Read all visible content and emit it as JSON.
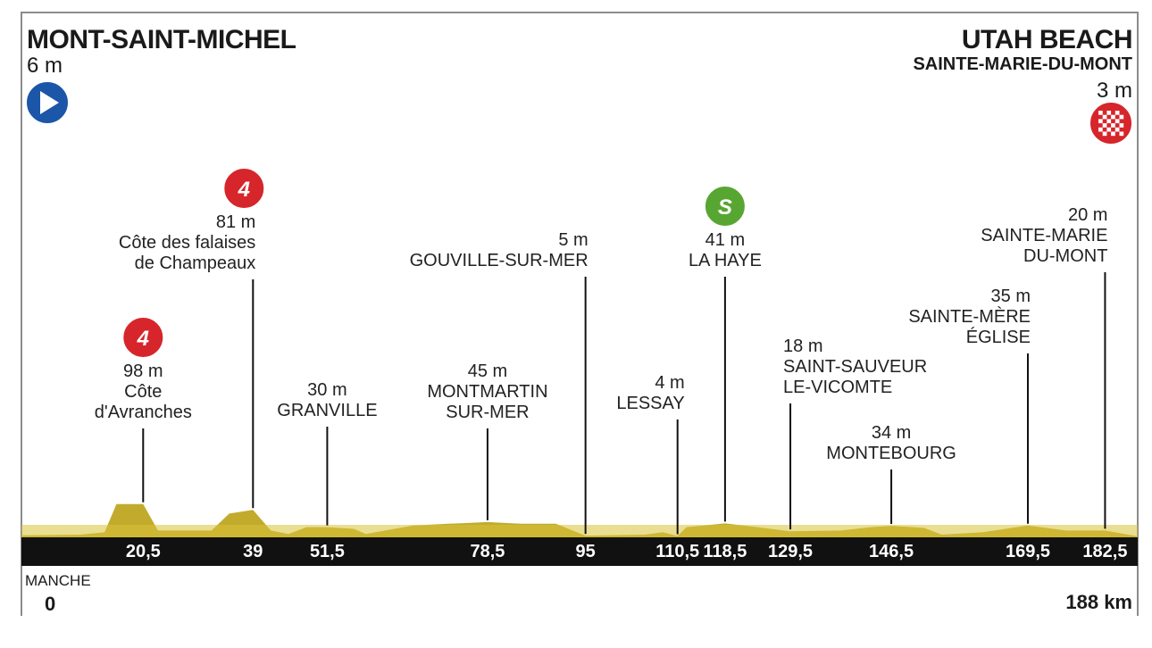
{
  "start": {
    "name": "MONT-SAINT-MICHEL",
    "altitude": "6 m"
  },
  "finish": {
    "name": "UTAH BEACH",
    "subname": "SAINTE-MARIE-DU-MONT",
    "altitude": "3 m"
  },
  "footer": {
    "region": "MANCHE",
    "start_km": "0",
    "end_km": "188 km"
  },
  "colors": {
    "profile": "#c2ab2c",
    "profile_top": "#d9c33a",
    "bar": "#111111",
    "frame": "#8c8c8c",
    "climb": "#d6252b",
    "sprint": "#58a632",
    "start": "#1b56a8"
  },
  "chart_data": {
    "type": "area",
    "title": "",
    "xlabel": "",
    "ylabel": "",
    "xlim": [
      0,
      188
    ],
    "ylim": [
      0,
      200
    ],
    "grid": false,
    "profile": [
      {
        "km": 0,
        "alt": 6
      },
      {
        "km": 10,
        "alt": 8
      },
      {
        "km": 14,
        "alt": 15
      },
      {
        "km": 16,
        "alt": 98
      },
      {
        "km": 20.5,
        "alt": 98
      },
      {
        "km": 23,
        "alt": 20
      },
      {
        "km": 32,
        "alt": 20
      },
      {
        "km": 35,
        "alt": 70
      },
      {
        "km": 39,
        "alt": 81
      },
      {
        "km": 42,
        "alt": 20
      },
      {
        "km": 45,
        "alt": 10
      },
      {
        "km": 48,
        "alt": 30
      },
      {
        "km": 51.5,
        "alt": 30
      },
      {
        "km": 56,
        "alt": 25
      },
      {
        "km": 58,
        "alt": 10
      },
      {
        "km": 66,
        "alt": 35
      },
      {
        "km": 72,
        "alt": 40
      },
      {
        "km": 78.5,
        "alt": 45
      },
      {
        "km": 84,
        "alt": 40
      },
      {
        "km": 90,
        "alt": 40
      },
      {
        "km": 95,
        "alt": 5
      },
      {
        "km": 105,
        "alt": 8
      },
      {
        "km": 108,
        "alt": 15
      },
      {
        "km": 110.5,
        "alt": 4
      },
      {
        "km": 112,
        "alt": 30
      },
      {
        "km": 118.5,
        "alt": 41
      },
      {
        "km": 124,
        "alt": 30
      },
      {
        "km": 129.5,
        "alt": 18
      },
      {
        "km": 138,
        "alt": 20
      },
      {
        "km": 143,
        "alt": 30
      },
      {
        "km": 146.5,
        "alt": 34
      },
      {
        "km": 152,
        "alt": 28
      },
      {
        "km": 155,
        "alt": 8
      },
      {
        "km": 162,
        "alt": 15
      },
      {
        "km": 169.5,
        "alt": 35
      },
      {
        "km": 176,
        "alt": 20
      },
      {
        "km": 182.5,
        "alt": 20
      },
      {
        "km": 188,
        "alt": 3
      }
    ],
    "points": [
      {
        "km": 20.5,
        "alt": "98 m",
        "name": "Côte\nd'Avranches",
        "category": "4"
      },
      {
        "km": 39,
        "alt": "81 m",
        "name": "Côte des falaises\nde Champeaux",
        "category": "4"
      },
      {
        "km": 51.5,
        "alt": "30 m",
        "name": "GRANVILLE",
        "category": ""
      },
      {
        "km": 78.5,
        "alt": "45 m",
        "name": "MONTMARTIN\nSUR-MER",
        "category": ""
      },
      {
        "km": 95,
        "alt": "5 m",
        "name": "GOUVILLE-SUR-MER",
        "category": ""
      },
      {
        "km": 110.5,
        "alt": "4 m",
        "name": "LESSAY",
        "category": ""
      },
      {
        "km": 118.5,
        "alt": "41 m",
        "name": "LA HAYE",
        "category": "S"
      },
      {
        "km": 129.5,
        "alt": "18 m",
        "name": "SAINT-SAUVEUR\nLE-VICOMTE",
        "category": ""
      },
      {
        "km": 146.5,
        "alt": "34 m",
        "name": "MONTEBOURG",
        "category": ""
      },
      {
        "km": 169.5,
        "alt": "35 m",
        "name": "SAINTE-MÈRE\nÉGLISE",
        "category": ""
      },
      {
        "km": 182.5,
        "alt": "20 m",
        "name": "SAINTE-MARIE\nDU-MONT",
        "category": ""
      }
    ],
    "km_labels": [
      "20,5",
      "39",
      "51,5",
      "78,5",
      "95",
      "110,5",
      "118,5",
      "129,5",
      "146,5",
      "169,5",
      "182,5"
    ]
  }
}
